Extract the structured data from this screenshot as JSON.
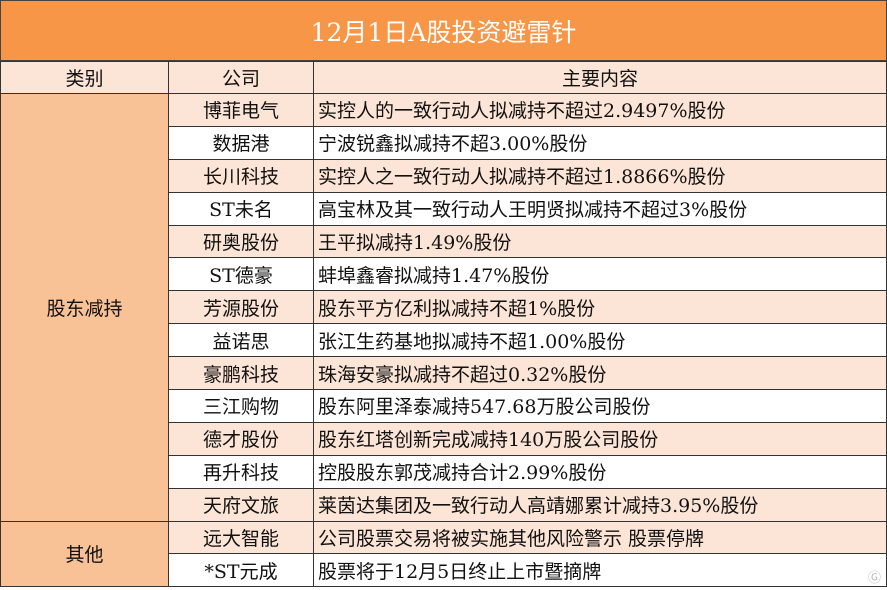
{
  "title": "12月1日A股投资避雷针",
  "headers": [
    "类别",
    "公司",
    "主要内容"
  ],
  "groups": [
    {
      "category": "股东减持",
      "rows": [
        {
          "company": "博菲电气",
          "content": "实控人的一致行动人拟减持不超过2.9497%股份"
        },
        {
          "company": "数据港",
          "content": "宁波锐鑫拟减持不超3.00%股份"
        },
        {
          "company": "长川科技",
          "content": "实控人之一致行动人拟减持不超过1.8866%股份"
        },
        {
          "company": "ST未名",
          "content": "高宝林及其一致行动人王明贤拟减持不超过3%股份"
        },
        {
          "company": "研奥股份",
          "content": "王平拟减持1.49%股份"
        },
        {
          "company": "ST德豪",
          "content": "蚌埠鑫睿拟减持1.47%股份"
        },
        {
          "company": "芳源股份",
          "content": "股东平方亿利拟减持不超1%股份"
        },
        {
          "company": "益诺思",
          "content": "张江生药基地拟减持不超1.00%股份"
        },
        {
          "company": "豪鹏科技",
          "content": "珠海安豪拟减持不超过0.32%股份"
        },
        {
          "company": "三江购物",
          "content": "股东阿里泽泰减持547.68万股公司股份"
        },
        {
          "company": "德才股份",
          "content": "股东红塔创新完成减持140万股公司股份"
        },
        {
          "company": "再升科技",
          "content": "控股股东郭茂减持合计2.99%股份"
        },
        {
          "company": "天府文旅",
          "content": "莱茵达集团及一致行动人高靖娜累计减持3.95%股份"
        }
      ]
    },
    {
      "category": "其他",
      "rows": [
        {
          "company": "远大智能",
          "content": "公司股票交易将被实施其他风险警示 股票停牌"
        },
        {
          "company": "*ST元成",
          "content": "股票将于12月5日终止上市暨摘牌"
        }
      ]
    }
  ],
  "watermark": "格隆汇",
  "colors": {
    "title_bg": "#f79646",
    "category_bg": "#f8c196",
    "row_alt": "#fce4d6"
  }
}
